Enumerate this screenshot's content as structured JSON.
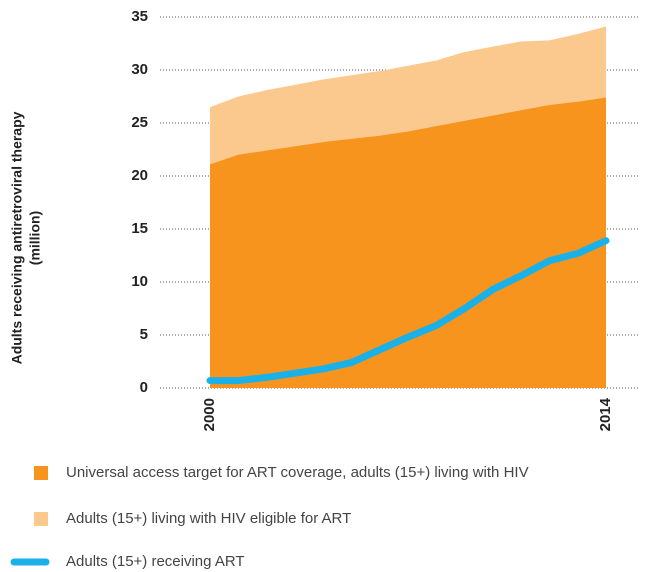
{
  "chart_data": {
    "type": "area",
    "ylabel": [
      "Adults receiving antiretroviral therapy",
      "(million)"
    ],
    "x": [
      2000,
      2001,
      2002,
      2003,
      2004,
      2005,
      2006,
      2007,
      2008,
      2009,
      2010,
      2011,
      2012,
      2013,
      2014
    ],
    "xlim": [
      2000,
      2014
    ],
    "xticks": [
      2000,
      2014
    ],
    "ylim": [
      0,
      35
    ],
    "yticks": [
      0,
      5,
      10,
      15,
      20,
      25,
      30,
      35
    ],
    "grid": true,
    "legend": "bottom",
    "series": [
      {
        "name": "Universal access target for ART coverage, adults (15+) living with HIV",
        "color": "#f7941d",
        "kind": "area",
        "values": [
          21.1,
          22.0,
          22.4,
          22.8,
          23.2,
          23.5,
          23.8,
          24.2,
          24.7,
          25.2,
          25.7,
          26.2,
          26.7,
          27.0,
          27.4
        ]
      },
      {
        "name": "Adults (15+) living with HIV eligible for ART",
        "color": "#fbc98e",
        "kind": "area",
        "values": [
          26.5,
          27.5,
          28.1,
          28.6,
          29.1,
          29.5,
          29.9,
          30.4,
          30.9,
          31.7,
          32.2,
          32.7,
          32.8,
          33.4,
          34.1
        ]
      },
      {
        "name": "Adults (15+) receiving ART",
        "color": "#1ab1e8",
        "kind": "line",
        "values": [
          0.7,
          0.7,
          1.0,
          1.4,
          1.8,
          2.4,
          3.6,
          4.8,
          5.9,
          7.5,
          9.3,
          10.6,
          12.0,
          12.7,
          13.9
        ]
      }
    ]
  }
}
